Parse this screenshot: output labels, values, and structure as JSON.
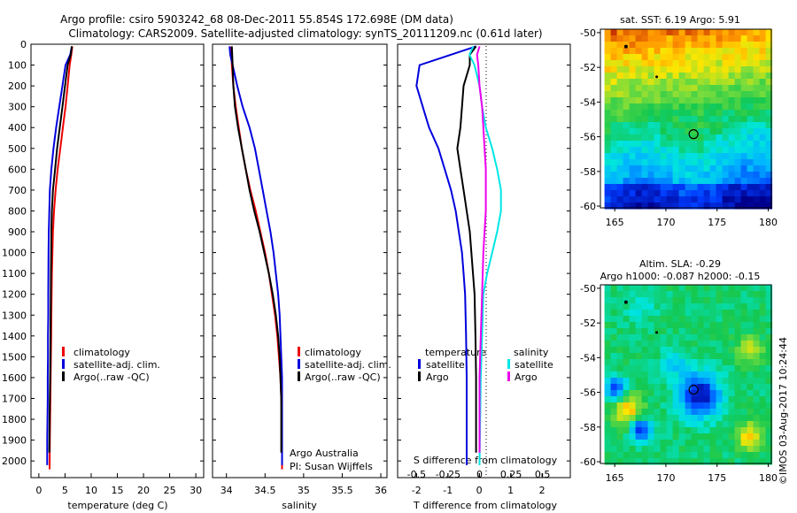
{
  "header": {
    "line1": "Argo profile: csiro 5903242_68 08-Dec-2011 55.854S 172.698E (DM data)",
    "line2": "Climatology: CARS2009. Satellite-adjusted climatology: synTS_20111209.nc (0.61d later)"
  },
  "footer": {
    "credit": "©IMOS 03-Aug-2017 10:24:44"
  },
  "colors": {
    "climatology": "#ee0000",
    "satellite": "#0000dd",
    "argo": "#000000",
    "s_satellite": "#00e6e6",
    "s_argo": "#ee00ee"
  },
  "chart_data": [
    {
      "type": "line",
      "name": "temperature",
      "xlabel": "temperature (deg C)",
      "xticks": [
        "0",
        "5",
        "10",
        "15",
        "20",
        "25",
        "30"
      ],
      "xlim": [
        -1.5,
        31.5
      ],
      "ylim": [
        2080,
        0
      ],
      "yticks": [
        "0",
        "100",
        "200",
        "300",
        "400",
        "500",
        "600",
        "700",
        "800",
        "900",
        "1000",
        "1100",
        "1200",
        "1300",
        "1400",
        "1500",
        "1600",
        "1700",
        "1800",
        "1900",
        "2000"
      ],
      "legend": [
        "climatology",
        "satellite-adj. clim.",
        "Argo(..raw -QC)"
      ],
      "series": [
        {
          "name": "climatology",
          "x": [
            6.4,
            6.2,
            5.9,
            5.5,
            5.1,
            4.6,
            4.1,
            3.6,
            3.2,
            2.9,
            2.7,
            2.6,
            2.5,
            2.45,
            2.4,
            2.35,
            2.3,
            2.25,
            2.2,
            2.15,
            2.1,
            2.05
          ],
          "y": [
            10,
            50,
            100,
            200,
            300,
            400,
            500,
            600,
            700,
            800,
            900,
            1000,
            1100,
            1200,
            1300,
            1400,
            1500,
            1600,
            1700,
            1800,
            1900,
            2040
          ]
        },
        {
          "name": "satellite-adj. clim.",
          "x": [
            6.3,
            6.0,
            5.1,
            4.5,
            3.9,
            3.3,
            2.8,
            2.4,
            2.1,
            2.0,
            1.9,
            1.85,
            1.8,
            1.8,
            1.75,
            1.75,
            1.7,
            1.7,
            1.65,
            1.6,
            1.6
          ],
          "y": [
            10,
            50,
            100,
            200,
            300,
            400,
            500,
            600,
            700,
            800,
            900,
            1000,
            1200,
            1300,
            1400,
            1500,
            1600,
            1700,
            1800,
            1900,
            2020
          ]
        },
        {
          "name": "Argo(..raw -QC)",
          "x": [
            6.3,
            6.1,
            5.5,
            5.0,
            4.5,
            4.0,
            3.5,
            3.1,
            2.7,
            2.5,
            2.4,
            2.35,
            2.3,
            2.25,
            2.2,
            2.15,
            2.1,
            2.05,
            2.0
          ],
          "y": [
            10,
            50,
            100,
            200,
            300,
            400,
            500,
            600,
            700,
            800,
            900,
            1000,
            1100,
            1300,
            1500,
            1600,
            1700,
            1800,
            1960
          ]
        }
      ]
    },
    {
      "type": "line",
      "name": "salinity",
      "xlabel": "salinity",
      "xticks": [
        "34",
        "34.5",
        "35",
        "35.5",
        "36"
      ],
      "xlim": [
        33.82,
        36.08
      ],
      "ylim": [
        2080,
        0
      ],
      "legend": [
        "climatology",
        "satellite-adj. clim.",
        "Argo(..raw -QC)"
      ],
      "annotation": [
        "Argo Australia",
        "PI: Susan Wijffels"
      ],
      "series": [
        {
          "name": "climatology",
          "x": [
            34.06,
            34.07,
            34.09,
            34.12,
            34.16,
            34.2,
            34.25,
            34.31,
            34.38,
            34.44,
            34.5,
            34.55,
            34.59,
            34.63,
            34.66,
            34.68,
            34.7,
            34.71,
            34.72,
            34.72
          ],
          "y": [
            10,
            100,
            200,
            300,
            400,
            500,
            600,
            700,
            800,
            900,
            1000,
            1100,
            1200,
            1300,
            1400,
            1500,
            1600,
            1700,
            1800,
            2040
          ]
        },
        {
          "name": "satellite-adj. clim.",
          "x": [
            34.04,
            34.05,
            34.08,
            34.14,
            34.21,
            34.3,
            34.37,
            34.42,
            34.47,
            34.52,
            34.57,
            34.61,
            34.64,
            34.67,
            34.69,
            34.7,
            34.71,
            34.72,
            34.72
          ],
          "y": [
            10,
            50,
            100,
            200,
            300,
            400,
            500,
            600,
            700,
            800,
            900,
            1000,
            1100,
            1200,
            1300,
            1400,
            1500,
            1600,
            2020
          ]
        },
        {
          "name": "Argo(..raw -QC)",
          "x": [
            34.07,
            34.08,
            34.09,
            34.11,
            34.15,
            34.2,
            34.25,
            34.3,
            34.36,
            34.43,
            34.49,
            34.55,
            34.6,
            34.64,
            34.67,
            34.69,
            34.7,
            34.71,
            34.71
          ],
          "y": [
            10,
            100,
            200,
            300,
            400,
            500,
            600,
            700,
            800,
            900,
            1000,
            1100,
            1200,
            1300,
            1400,
            1500,
            1600,
            1700,
            1960
          ]
        }
      ]
    },
    {
      "type": "line",
      "name": "difference",
      "xlabel": "T difference from climatology",
      "xticks": [
        "-2",
        "-1",
        "0",
        "1",
        "2"
      ],
      "xlim": [
        -2.6,
        2.9
      ],
      "top_axis_label": "S difference from climatology",
      "top_ticks": [
        "-0.5",
        "-0.25",
        "0",
        "0.25",
        "0.5"
      ],
      "ylim": [
        2080,
        0
      ],
      "legend": {
        "temperature": [
          "satellite",
          "Argo"
        ],
        "salinity": [
          "satellite",
          "Argo"
        ]
      },
      "series": [
        {
          "name": "temperature satellite",
          "x": [
            -0.1,
            -0.9,
            -1.9,
            -2.0,
            -1.8,
            -1.6,
            -1.3,
            -1.1,
            -0.9,
            -0.75,
            -0.65,
            -0.55,
            -0.5,
            -0.45,
            -0.42,
            -0.4,
            -0.4
          ],
          "y": [
            10,
            50,
            100,
            200,
            300,
            400,
            500,
            600,
            700,
            800,
            900,
            1000,
            1100,
            1200,
            1400,
            1600,
            2020
          ]
        },
        {
          "name": "temperature Argo",
          "x": [
            -0.1,
            -0.3,
            -0.3,
            -0.5,
            -0.55,
            -0.6,
            -0.7,
            -0.6,
            -0.5,
            -0.4,
            -0.3,
            -0.25,
            -0.2,
            -0.15,
            -0.12,
            -0.1,
            -0.1
          ],
          "y": [
            10,
            50,
            100,
            200,
            300,
            400,
            500,
            600,
            700,
            800,
            900,
            1000,
            1100,
            1200,
            1400,
            1600,
            1960
          ]
        },
        {
          "name": "salinity satellite",
          "x": [
            -0.05,
            -0.08,
            -0.04,
            0.0,
            0.02,
            0.05,
            0.1,
            0.14,
            0.17,
            0.17,
            0.14,
            0.1,
            0.06,
            0.03,
            0.02,
            0.01,
            0.0
          ],
          "y": [
            10,
            50,
            100,
            200,
            300,
            400,
            500,
            600,
            700,
            800,
            900,
            1000,
            1100,
            1200,
            1400,
            1600,
            2020
          ]
        },
        {
          "name": "salinity Argo",
          "x": [
            0.0,
            -0.02,
            -0.01,
            0.0,
            0.02,
            0.03,
            0.04,
            0.05,
            0.05,
            0.05,
            0.04,
            0.03,
            0.02,
            0.01,
            0.0,
            0.0
          ],
          "y": [
            10,
            50,
            100,
            200,
            300,
            400,
            500,
            600,
            700,
            800,
            900,
            1000,
            1200,
            1400,
            1600,
            1960
          ]
        }
      ]
    },
    {
      "type": "heatmap",
      "name": "sst-map",
      "title": "sat. SST: 6.19 Argo: 5.91",
      "xticks": [
        "165",
        "170",
        "175",
        "180"
      ],
      "yticks": [
        "-50",
        "-52",
        "-54",
        "-56",
        "-58",
        "-60"
      ],
      "xlim": [
        163.6,
        180.3
      ],
      "ylim": [
        -60.1,
        -49.8
      ],
      "profile_marker": {
        "lon": 172.7,
        "lat": -55.85
      }
    },
    {
      "type": "heatmap",
      "name": "sla-map",
      "title": "Altim. SLA: -0.29",
      "subtitle": "Argo h1000: -0.087 h2000: -0.15",
      "xticks": [
        "165",
        "170",
        "175",
        "180"
      ],
      "yticks": [
        "-50",
        "-52",
        "-54",
        "-56",
        "-58",
        "-60"
      ],
      "xlim": [
        163.6,
        180.3
      ],
      "ylim": [
        -60.1,
        -49.8
      ],
      "profile_marker": {
        "lon": 172.7,
        "lat": -55.85
      }
    }
  ]
}
